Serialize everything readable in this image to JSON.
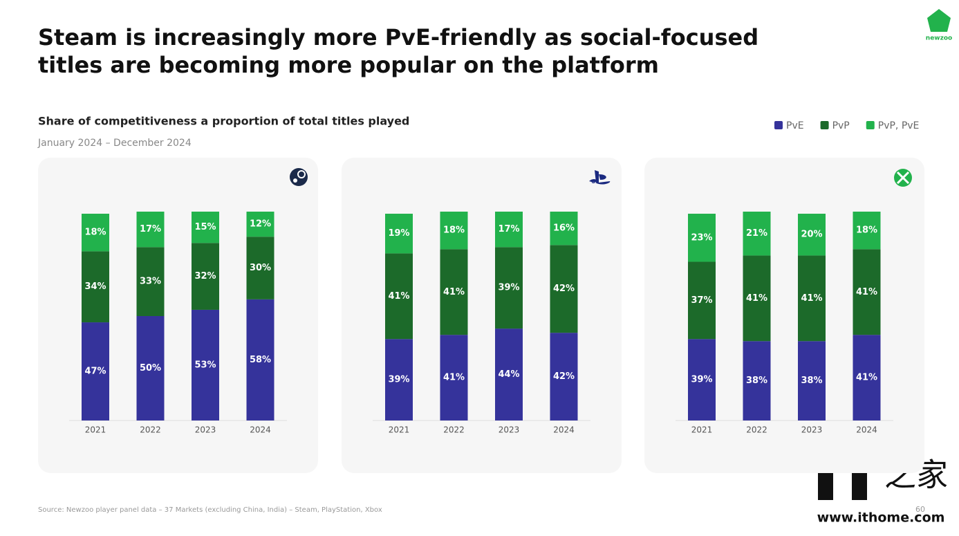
{
  "title_line1": "Steam is increasingly more PvE-friendly as social-focused",
  "title_line2": "titles are becoming more popular on the platform",
  "subtitle": "Share of competitiveness a proportion of total titles played",
  "date_range": "January 2024 – December 2024",
  "source": "Source: Newzoo player panel data – 37 Markets (excluding China, India) – Steam, PlayStation, Xbox",
  "page_number": "60",
  "logo_text": "newzoo",
  "watermark": "www.ithome.com",
  "chart_data": [
    {
      "type": "stacked-bar",
      "categories": [
        "2021",
        "2022",
        "2023",
        "2024"
      ],
      "series": [
        {
          "name": "PvE",
          "color": "#35339b",
          "values": [
            47,
            50,
            53,
            58
          ],
          "value_labels": [
            "47%",
            "50%",
            "53%",
            "58%"
          ]
        },
        {
          "name": "PvP",
          "color": "#1c6a2a",
          "values": [
            34,
            33,
            32,
            30
          ],
          "value_labels": [
            "34%",
            "33%",
            "32%",
            "30%"
          ]
        },
        {
          "name": "PvP, PvE",
          "color": "#22b24c",
          "values": [
            18,
            17,
            15,
            12
          ],
          "value_labels": [
            "18%",
            "17%",
            "15%",
            "12%"
          ]
        }
      ]
    },
    {
      "type": "stacked-bar",
      "categories": [
        "2021",
        "2022",
        "2023",
        "2024"
      ],
      "series": [
        {
          "name": "PvE",
          "color": "#35339b",
          "values": [
            39,
            41,
            44,
            42
          ],
          "value_labels": [
            "39%",
            "41%",
            "44%",
            "42%"
          ]
        },
        {
          "name": "PvP",
          "color": "#1c6a2a",
          "values": [
            41,
            41,
            39,
            42
          ],
          "value_labels": [
            "41%",
            "41%",
            "39%",
            "42%"
          ]
        },
        {
          "name": "PvP, PvE",
          "color": "#22b24c",
          "values": [
            19,
            18,
            17,
            16
          ],
          "value_labels": [
            "19%",
            "18%",
            "17%",
            "16%"
          ]
        }
      ]
    },
    {
      "type": "stacked-bar",
      "categories": [
        "2021",
        "2022",
        "2023",
        "2024"
      ],
      "series": [
        {
          "name": "PvE",
          "color": "#35339b",
          "values": [
            39,
            38,
            38,
            41
          ],
          "value_labels": [
            "39%",
            "38%",
            "38%",
            "41%"
          ]
        },
        {
          "name": "PvP",
          "color": "#1c6a2a",
          "values": [
            37,
            41,
            41,
            41
          ],
          "value_labels": [
            "37%",
            "41%",
            "41%",
            "41%"
          ]
        },
        {
          "name": "PvP, PvE",
          "color": "#22b24c",
          "values": [
            23,
            21,
            20,
            18
          ],
          "value_labels": [
            "23%",
            "21%",
            "20%",
            "18%"
          ]
        }
      ]
    }
  ]
}
